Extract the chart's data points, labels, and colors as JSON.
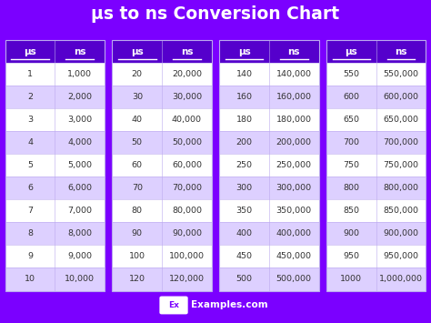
{
  "title": "μs to ns Conversion Chart",
  "title_bg": "#7B00FF",
  "title_color": "#FFFFFF",
  "table_bg": "#7B00FF",
  "header_bg": "#5500CC",
  "row_bg_light": "#FFFFFF",
  "row_bg_purple": "#DDD0FF",
  "cell_text_color": "#333333",
  "header_text_color": "#FFFFFF",
  "footer_text": "Examples.com",
  "columns": [
    {
      "us_vals": [
        1,
        2,
        3,
        4,
        5,
        6,
        7,
        8,
        9,
        10
      ],
      "ns_vals": [
        "1,000",
        "2,000",
        "3,000",
        "4,000",
        "5,000",
        "6,000",
        "7,000",
        "8,000",
        "9,000",
        "10,000"
      ]
    },
    {
      "us_vals": [
        20,
        30,
        40,
        50,
        60,
        70,
        80,
        90,
        100,
        120
      ],
      "ns_vals": [
        "20,000",
        "30,000",
        "40,000",
        "50,000",
        "60,000",
        "70,000",
        "80,000",
        "90,000",
        "100,000",
        "120,000"
      ]
    },
    {
      "us_vals": [
        140,
        160,
        180,
        200,
        250,
        300,
        350,
        400,
        450,
        500
      ],
      "ns_vals": [
        "140,000",
        "160,000",
        "180,000",
        "200,000",
        "250,000",
        "300,000",
        "350,000",
        "400,000",
        "450,000",
        "500,000"
      ]
    },
    {
      "us_vals": [
        550,
        600,
        650,
        700,
        750,
        800,
        850,
        900,
        950,
        1000
      ],
      "ns_vals": [
        "550,000",
        "600,000",
        "650,000",
        "700,000",
        "750,000",
        "800,000",
        "850,000",
        "900,000",
        "950,000",
        "1,000,000"
      ]
    }
  ]
}
